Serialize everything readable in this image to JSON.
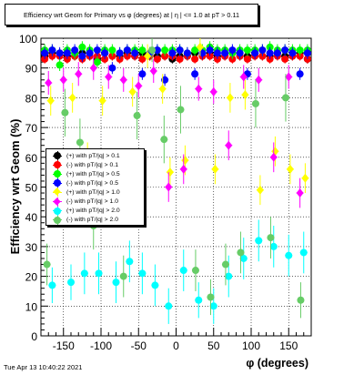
{
  "timestamp": "Tue Apr 13 10:40:22 2021",
  "chart_data": {
    "type": "scatter",
    "title": "Efficiency wrt Geom for Primary vs φ (degrees) at | η | <= 1.0 at pT > 0.11",
    "xlabel": "φ (degrees)",
    "ylabel": "Efficiency wrt Geom (%)",
    "xlim": [
      -180,
      180
    ],
    "ylim": [
      0,
      100
    ],
    "x_ticks": [
      "-150",
      "-100",
      "-50",
      "0",
      "50",
      "100",
      "150"
    ],
    "y_ticks": [
      "0",
      "10",
      "20",
      "30",
      "40",
      "50",
      "60",
      "70",
      "80",
      "90",
      "100"
    ],
    "grid": true,
    "legend_position": "middle-left",
    "series": [
      {
        "name": "(+) with pT/|q| > 0.1",
        "color": "#000000",
        "marker": "circle",
        "x": [
          -175,
          -165,
          -155,
          -145,
          -135,
          -125,
          -115,
          -105,
          -95,
          -85,
          -75,
          -65,
          -55,
          -45,
          -35,
          -25,
          -15,
          -5,
          5,
          15,
          25,
          35,
          45,
          55,
          65,
          75,
          85,
          95,
          105,
          115,
          125,
          135,
          145,
          155,
          165,
          175
        ],
        "y": [
          94,
          95,
          95,
          94,
          94,
          95,
          94,
          93,
          95,
          94,
          94,
          95,
          94,
          95,
          94,
          94,
          94,
          93,
          94,
          94,
          95,
          94,
          95,
          94,
          94,
          95,
          94,
          94,
          95,
          94,
          94,
          95,
          94,
          94,
          95,
          93
        ],
        "err": [
          1.5,
          1.5,
          1.5,
          1.5,
          1.5,
          1.5,
          1.5,
          1.5,
          1.5,
          1.5,
          1.5,
          1.5,
          1.5,
          1.5,
          1.5,
          1.5,
          1.5,
          1.5,
          1.5,
          1.5,
          1.5,
          1.5,
          1.5,
          1.5,
          1.5,
          1.5,
          1.5,
          1.5,
          1.5,
          1.5,
          1.5,
          1.5,
          1.5,
          1.5,
          1.5,
          1.5
        ]
      },
      {
        "name": "(-) with pT/|q| > 0.1",
        "color": "#ff0000",
        "marker": "circle",
        "x": [
          -175,
          -165,
          -155,
          -145,
          -135,
          -125,
          -115,
          -105,
          -95,
          -85,
          -75,
          -65,
          -55,
          -45,
          -35,
          -25,
          -15,
          -5,
          5,
          15,
          25,
          35,
          45,
          55,
          65,
          75,
          85,
          95,
          105,
          115,
          125,
          135,
          145,
          155,
          165,
          175
        ],
        "y": [
          93,
          94,
          94,
          93,
          94,
          93,
          94,
          94,
          93,
          94,
          93,
          94,
          94,
          93,
          94,
          93,
          94,
          94,
          93,
          94,
          93,
          94,
          94,
          93,
          94,
          93,
          94,
          93,
          94,
          94,
          93,
          94,
          93,
          94,
          94,
          93
        ],
        "err": [
          1.5,
          1.5,
          1.5,
          1.5,
          1.5,
          1.5,
          1.5,
          1.5,
          1.5,
          1.5,
          1.5,
          1.5,
          1.5,
          1.5,
          1.5,
          1.5,
          1.5,
          1.5,
          1.5,
          1.5,
          1.5,
          1.5,
          1.5,
          1.5,
          1.5,
          1.5,
          1.5,
          1.5,
          1.5,
          1.5,
          1.5,
          1.5,
          1.5,
          1.5,
          1.5,
          1.5
        ]
      },
      {
        "name": "(+) with pT/|q| > 0.5",
        "color": "#00ff00",
        "marker": "circle",
        "x": [
          -175,
          -165,
          -155,
          -145,
          -135,
          -125,
          -115,
          -105,
          -95,
          -85,
          -75,
          -65,
          -55,
          -45,
          -35,
          -25,
          -15,
          -5,
          5,
          15,
          25,
          35,
          45,
          55,
          65,
          75,
          85,
          95,
          105,
          115,
          125,
          135,
          145,
          155,
          165,
          175
        ],
        "y": [
          96,
          96,
          91,
          96,
          95,
          97,
          96,
          92,
          96,
          96,
          95,
          96,
          96,
          96,
          95,
          96,
          96,
          96,
          96,
          95,
          96,
          96,
          97,
          96,
          96,
          95,
          96,
          96,
          96,
          96,
          97,
          96,
          96,
          96,
          96,
          96
        ],
        "err": [
          2,
          2,
          2,
          2,
          2,
          2,
          2,
          2,
          2,
          2,
          2,
          2,
          2,
          2,
          2,
          2,
          2,
          2,
          2,
          2,
          2,
          2,
          2,
          2,
          2,
          2,
          2,
          2,
          2,
          2,
          2,
          2,
          2,
          2,
          2,
          2
        ]
      },
      {
        "name": "(-) with pT/|q| > 0.5",
        "color": "#0000ff",
        "marker": "circle",
        "x": [
          -175,
          -165,
          -155,
          -145,
          -135,
          -125,
          -115,
          -105,
          -95,
          -85,
          -75,
          -65,
          -55,
          -45,
          -35,
          -25,
          -15,
          -5,
          5,
          15,
          25,
          35,
          45,
          55,
          65,
          75,
          85,
          95,
          105,
          115,
          125,
          135,
          145,
          155,
          165,
          175
        ],
        "y": [
          95,
          96,
          95,
          95,
          96,
          94,
          95,
          96,
          95,
          90,
          95,
          96,
          95,
          88,
          95,
          96,
          86,
          95,
          96,
          95,
          88,
          95,
          96,
          95,
          95,
          96,
          95,
          88,
          95,
          96,
          95,
          95,
          96,
          95,
          88,
          95
        ],
        "err": [
          2,
          2,
          2,
          2,
          2,
          2,
          2,
          2,
          2,
          2,
          2,
          2,
          2,
          2,
          2,
          2,
          2,
          2,
          2,
          2,
          2,
          2,
          2,
          2,
          2,
          2,
          2,
          2,
          2,
          2,
          2,
          2,
          2,
          2,
          2,
          2
        ]
      },
      {
        "name": "(+) with pT/|q| > 1.0",
        "color": "#ffff00",
        "marker": "diamond",
        "x": [
          -167,
          -138,
          -118,
          -98,
          -78,
          -58,
          -38,
          -18,
          -8,
          12,
          32,
          52,
          72,
          92,
          112,
          132,
          152,
          172
        ],
        "y": [
          79,
          80,
          60,
          79,
          55,
          82,
          94,
          83,
          55,
          59,
          97,
          56,
          80,
          81,
          49,
          62,
          56,
          53
        ],
        "err": [
          5,
          5,
          5,
          5,
          5,
          5,
          4,
          5,
          5,
          5,
          3,
          5,
          5,
          5,
          5,
          5,
          5,
          5
        ]
      },
      {
        "name": "(-) with pT/|q| > 1.0",
        "color": "#ff00ff",
        "marker": "diamond",
        "x": [
          -170,
          -150,
          -130,
          -110,
          -90,
          -70,
          -50,
          -30,
          -10,
          10,
          30,
          50,
          70,
          90,
          110,
          130,
          150,
          165
        ],
        "y": [
          85,
          86,
          88,
          90,
          87,
          86,
          84,
          89,
          50,
          56,
          83,
          82,
          64,
          87,
          86,
          60,
          87,
          48
        ],
        "err": [
          4,
          4,
          4,
          4,
          4,
          4,
          4,
          4,
          5,
          5,
          4,
          4,
          5,
          4,
          4,
          5,
          4,
          5
        ]
      },
      {
        "name": "(+) with pT/|q| > 2.0",
        "color": "#00ffff",
        "marker": "circle",
        "x": [
          -165,
          -140,
          -122,
          -103,
          -80,
          -62,
          -45,
          -28,
          -10,
          10,
          30,
          50,
          70,
          90,
          110,
          130,
          150,
          170
        ],
        "y": [
          17,
          18,
          21,
          21,
          18,
          25,
          21,
          17,
          10,
          22,
          12,
          10,
          20,
          26,
          32,
          30,
          27,
          28
        ],
        "err": [
          6,
          6,
          7,
          7,
          7,
          7,
          7,
          7,
          6,
          7,
          6,
          6,
          7,
          7,
          7,
          7,
          7,
          7
        ]
      },
      {
        "name": "(-) with pT/|q| > 2.0",
        "color": "#66cc66",
        "marker": "circle",
        "x": [
          -172,
          -148,
          -128,
          -110,
          -90,
          -70,
          -52,
          -32,
          -16,
          6,
          26,
          46,
          66,
          86,
          106,
          126,
          146,
          166
        ],
        "y": [
          24,
          75,
          65,
          37,
          55,
          20,
          74,
          96,
          66,
          76,
          22,
          13,
          24,
          28,
          78,
          33,
          80,
          12
        ],
        "err": [
          7,
          8,
          8,
          8,
          8,
          7,
          8,
          4,
          8,
          8,
          7,
          6,
          7,
          7,
          8,
          7,
          8,
          6
        ]
      }
    ]
  }
}
